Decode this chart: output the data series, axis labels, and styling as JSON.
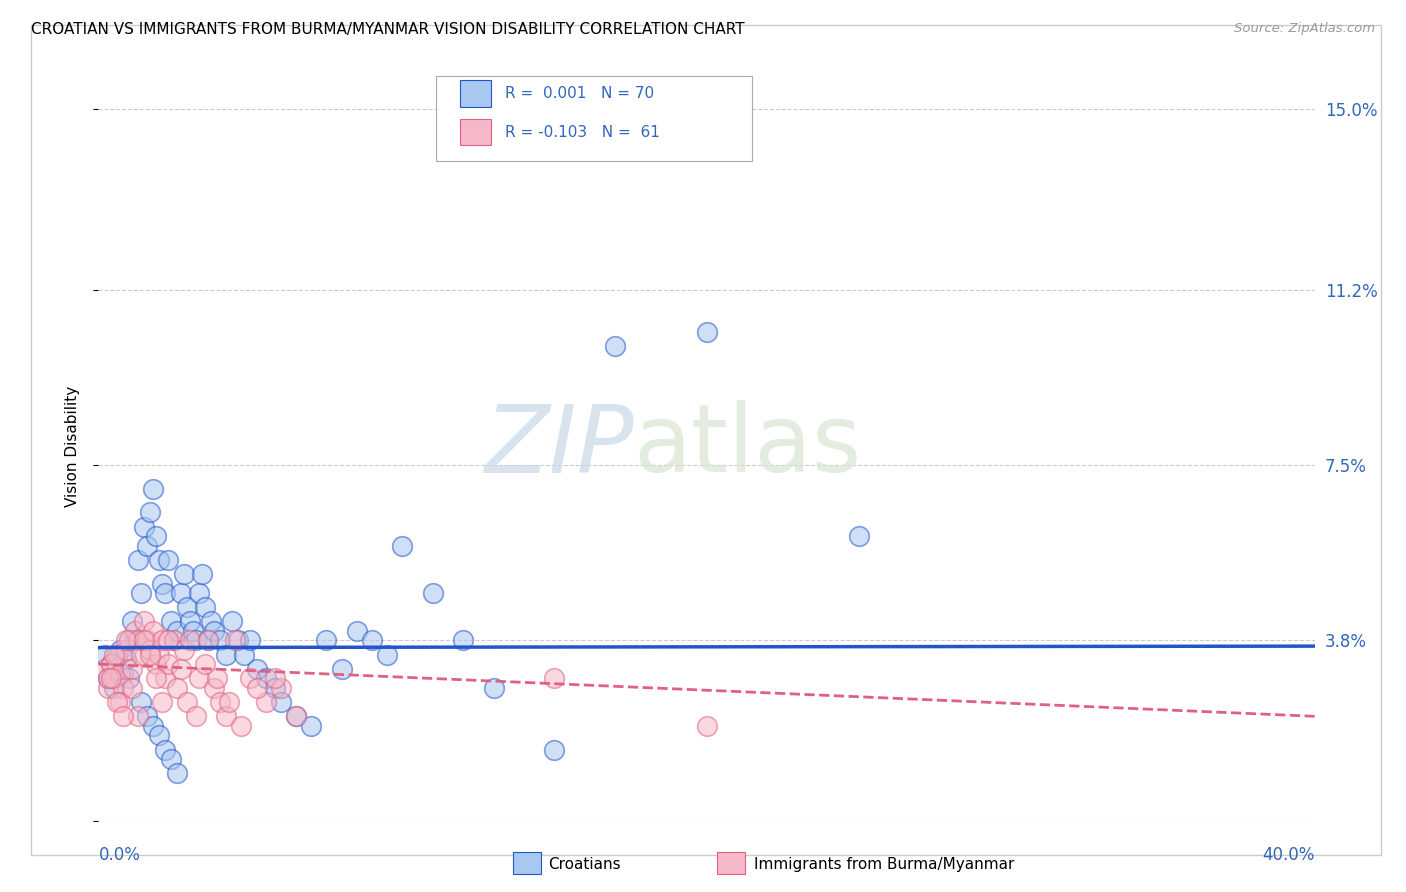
{
  "title": "CROATIAN VS IMMIGRANTS FROM BURMA/MYANMAR VISION DISABILITY CORRELATION CHART",
  "source": "Source: ZipAtlas.com",
  "ylabel": "Vision Disability",
  "yticks": [
    0.0,
    0.038,
    0.075,
    0.112,
    0.15
  ],
  "ytick_labels": [
    "",
    "3.8%",
    "7.5%",
    "11.2%",
    "15.0%"
  ],
  "xlim": [
    0.0,
    0.4
  ],
  "ylim": [
    0.0,
    0.158
  ],
  "color_blue": "#a8c8f0",
  "color_pink": "#f5b8c8",
  "line_blue": "#2255cc",
  "line_pink": "#e06080",
  "watermark_zip": "ZIP",
  "watermark_atlas": "atlas",
  "background": "#ffffff",
  "grid_color": "#cccccc",
  "cr_trend_y0": 0.0365,
  "cr_trend_y1": 0.0368,
  "bu_trend_y0": 0.033,
  "bu_trend_y1": 0.022,
  "croatians_x": [
    0.002,
    0.003,
    0.004,
    0.005,
    0.006,
    0.007,
    0.008,
    0.009,
    0.01,
    0.01,
    0.011,
    0.012,
    0.013,
    0.014,
    0.015,
    0.016,
    0.017,
    0.018,
    0.019,
    0.02,
    0.021,
    0.022,
    0.023,
    0.024,
    0.025,
    0.026,
    0.027,
    0.028,
    0.029,
    0.03,
    0.031,
    0.032,
    0.033,
    0.034,
    0.035,
    0.036,
    0.037,
    0.038,
    0.04,
    0.042,
    0.044,
    0.046,
    0.048,
    0.05,
    0.052,
    0.055,
    0.058,
    0.06,
    0.065,
    0.07,
    0.075,
    0.08,
    0.085,
    0.09,
    0.095,
    0.1,
    0.11,
    0.12,
    0.13,
    0.15,
    0.17,
    0.2,
    0.25,
    0.014,
    0.016,
    0.018,
    0.02,
    0.022,
    0.024,
    0.026
  ],
  "croatians_y": [
    0.035,
    0.03,
    0.033,
    0.028,
    0.032,
    0.036,
    0.031,
    0.034,
    0.038,
    0.03,
    0.042,
    0.038,
    0.055,
    0.048,
    0.062,
    0.058,
    0.065,
    0.07,
    0.06,
    0.055,
    0.05,
    0.048,
    0.055,
    0.042,
    0.038,
    0.04,
    0.048,
    0.052,
    0.045,
    0.042,
    0.04,
    0.038,
    0.048,
    0.052,
    0.045,
    0.038,
    0.042,
    0.04,
    0.038,
    0.035,
    0.042,
    0.038,
    0.035,
    0.038,
    0.032,
    0.03,
    0.028,
    0.025,
    0.022,
    0.02,
    0.038,
    0.032,
    0.04,
    0.038,
    0.035,
    0.058,
    0.048,
    0.038,
    0.028,
    0.015,
    0.1,
    0.103,
    0.06,
    0.025,
    0.022,
    0.02,
    0.018,
    0.015,
    0.013,
    0.01
  ],
  "burma_x": [
    0.002,
    0.003,
    0.004,
    0.005,
    0.006,
    0.007,
    0.008,
    0.009,
    0.01,
    0.011,
    0.012,
    0.013,
    0.014,
    0.015,
    0.016,
    0.017,
    0.018,
    0.019,
    0.02,
    0.021,
    0.022,
    0.023,
    0.025,
    0.027,
    0.028,
    0.03,
    0.033,
    0.035,
    0.038,
    0.04,
    0.042,
    0.045,
    0.05,
    0.055,
    0.06,
    0.065,
    0.003,
    0.005,
    0.007,
    0.009,
    0.011,
    0.013,
    0.015,
    0.017,
    0.019,
    0.021,
    0.023,
    0.026,
    0.029,
    0.032,
    0.036,
    0.039,
    0.043,
    0.047,
    0.052,
    0.058,
    0.15,
    0.2,
    0.004,
    0.006,
    0.008
  ],
  "burma_y": [
    0.032,
    0.028,
    0.033,
    0.03,
    0.035,
    0.031,
    0.028,
    0.036,
    0.038,
    0.032,
    0.04,
    0.038,
    0.035,
    0.042,
    0.038,
    0.036,
    0.04,
    0.033,
    0.035,
    0.038,
    0.03,
    0.033,
    0.038,
    0.032,
    0.036,
    0.038,
    0.03,
    0.033,
    0.028,
    0.025,
    0.022,
    0.038,
    0.03,
    0.025,
    0.028,
    0.022,
    0.03,
    0.035,
    0.025,
    0.038,
    0.028,
    0.022,
    0.038,
    0.035,
    0.03,
    0.025,
    0.038,
    0.028,
    0.025,
    0.022,
    0.038,
    0.03,
    0.025,
    0.02,
    0.028,
    0.03,
    0.03,
    0.02,
    0.03,
    0.025,
    0.022
  ]
}
